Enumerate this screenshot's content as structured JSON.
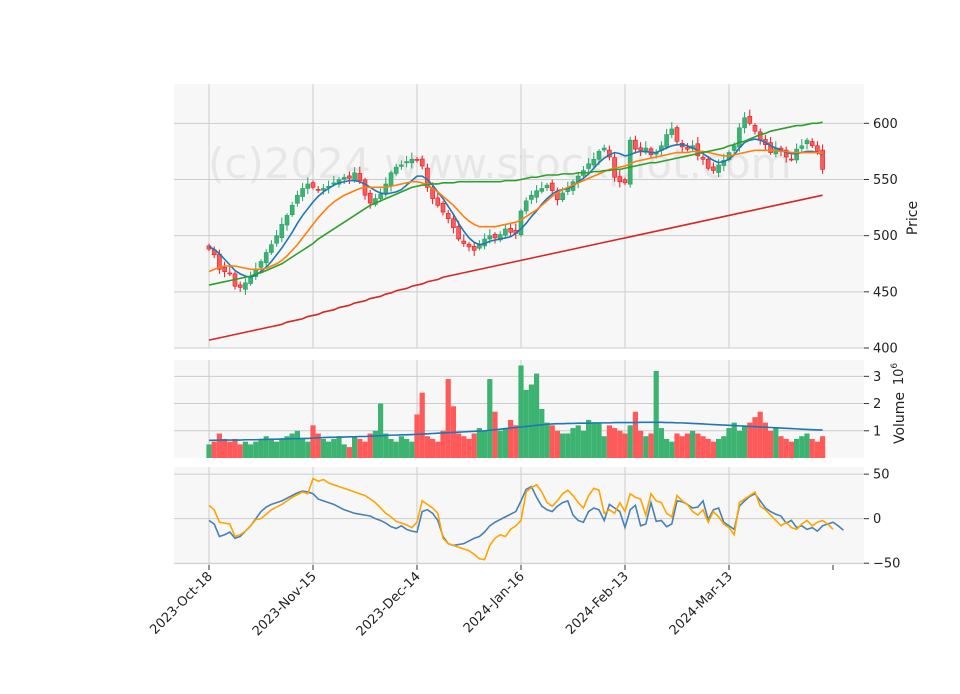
{
  "watermark": "(c)2024 www.stockplot.com",
  "chart_data": [
    {
      "panel": "price",
      "type": "candlestick",
      "ylabel": "Price",
      "ylim": [
        400,
        635
      ],
      "yticks": [
        400,
        450,
        500,
        550,
        600
      ],
      "grid": true,
      "xticks": [
        {
          "index": 0,
          "label": "2023-Oct-18"
        },
        {
          "index": 20,
          "label": "2023-Nov-15"
        },
        {
          "index": 40,
          "label": "2023-Dec-14"
        },
        {
          "index": 60,
          "label": "2024-Jan-16"
        },
        {
          "index": 80,
          "label": "2024-Feb-13"
        },
        {
          "index": 100,
          "label": "2024-Mar-13"
        }
      ],
      "colors": {
        "up": "#26a269",
        "down": "#e01b24",
        "up_fill": "#3cb371",
        "down_fill": "#ff5a5a"
      },
      "close": [
        488,
        483,
        470,
        468,
        466,
        455,
        454,
        458,
        463,
        470,
        477,
        485,
        492,
        500,
        510,
        518,
        527,
        536,
        542,
        546,
        543,
        541,
        542,
        544,
        547,
        550,
        552,
        551,
        556,
        549,
        536,
        529,
        533,
        537,
        546,
        556,
        561,
        563,
        566,
        568,
        567,
        562,
        543,
        533,
        527,
        521,
        515,
        507,
        497,
        493,
        490,
        487,
        492,
        497,
        500,
        498,
        501,
        506,
        503,
        502,
        522,
        531,
        536,
        540,
        542,
        545,
        540,
        532,
        538,
        542,
        548,
        553,
        558,
        564,
        568,
        575,
        578,
        570,
        552,
        548,
        547,
        585,
        577,
        576,
        578,
        572,
        574,
        580,
        590,
        595,
        584,
        579,
        577,
        580,
        571,
        568,
        560,
        558,
        563,
        567,
        574,
        580,
        596,
        605,
        600,
        593,
        585,
        581,
        574,
        578,
        575,
        570,
        568,
        577,
        580,
        585,
        580,
        575,
        559
      ]
    },
    {
      "panel": "price_moving_averages",
      "type": "line",
      "series": [
        {
          "color": "#1f77b4",
          "values": [
            490,
            488,
            484,
            479,
            474,
            469,
            466,
            464,
            463,
            465,
            468,
            472,
            477,
            483,
            489,
            496,
            503,
            511,
            518,
            524,
            530,
            535,
            539,
            542,
            545,
            547,
            548,
            549,
            549,
            548,
            546,
            543,
            540,
            538,
            537,
            538,
            539,
            541,
            545,
            549,
            553,
            553,
            550,
            545,
            539,
            533,
            526,
            519,
            511,
            504,
            498,
            494,
            492,
            493,
            495,
            496,
            497,
            498,
            499,
            502,
            506,
            511,
            517,
            522,
            528,
            533,
            537,
            540,
            541,
            542,
            544,
            548,
            551,
            555,
            560,
            565,
            569,
            572,
            574,
            573,
            571,
            572,
            574,
            575,
            575,
            574,
            574,
            576,
            578,
            580,
            581,
            581,
            580,
            578,
            576,
            573,
            570,
            567,
            565,
            566,
            568,
            572,
            578,
            583,
            585,
            586,
            585,
            583,
            580,
            578,
            576,
            574,
            573,
            573,
            574,
            575,
            575,
            574,
            572
          ]
        },
        {
          "color": "#ff7f0e",
          "values": [
            468,
            470,
            472,
            473,
            473,
            473,
            472,
            471,
            470,
            470,
            470,
            471,
            473,
            475,
            478,
            482,
            487,
            492,
            498,
            504,
            510,
            516,
            521,
            526,
            530,
            533,
            536,
            538,
            540,
            542,
            543,
            543,
            543,
            543,
            543,
            544,
            545,
            546,
            547,
            548,
            548,
            547,
            545,
            542,
            539,
            535,
            531,
            527,
            522,
            517,
            513,
            510,
            508,
            508,
            508,
            508,
            509,
            510,
            511,
            512,
            514,
            517,
            520,
            523,
            527,
            531,
            535,
            538,
            541,
            543,
            545,
            547,
            549,
            551,
            553,
            555,
            557,
            559,
            560,
            561,
            562,
            564,
            566,
            567,
            568,
            569,
            570,
            571,
            572,
            573,
            574,
            574,
            574,
            575,
            575,
            575,
            574,
            573,
            572,
            571,
            571,
            572,
            573,
            574,
            575,
            576,
            576,
            576,
            576,
            576,
            575,
            575,
            574,
            574,
            574,
            574,
            574,
            574,
            573
          ]
        },
        {
          "color": "#2ca02c",
          "values": [
            456,
            457,
            458,
            459,
            460,
            461,
            462,
            463,
            464,
            466,
            467,
            469,
            471,
            473,
            475,
            478,
            481,
            484,
            487,
            490,
            493,
            497,
            500,
            503,
            506,
            509,
            512,
            515,
            518,
            521,
            524,
            527,
            529,
            531,
            533,
            535,
            537,
            539,
            541,
            543,
            544,
            545,
            545,
            546,
            546,
            547,
            547,
            547,
            548,
            548,
            548,
            548,
            548,
            548,
            548,
            548,
            548,
            549,
            549,
            549,
            550,
            551,
            552,
            552,
            553,
            554,
            554,
            554,
            555,
            555,
            555,
            556,
            556,
            556,
            557,
            557,
            558,
            558,
            559,
            559,
            560,
            561,
            562,
            563,
            564,
            565,
            565,
            566,
            567,
            568,
            569,
            570,
            571,
            572,
            573,
            574,
            575,
            576,
            577,
            578,
            580,
            581,
            583,
            584,
            586,
            588,
            590,
            591,
            593,
            594,
            595,
            596,
            597,
            598,
            598,
            599,
            600,
            600,
            601
          ]
        },
        {
          "color": "#d62728",
          "values": [
            407,
            408,
            409,
            410,
            411,
            412,
            413,
            414,
            415,
            416,
            417,
            418,
            419,
            420,
            421,
            423,
            424,
            425,
            426,
            428,
            429,
            430,
            432,
            433,
            434,
            436,
            437,
            438,
            440,
            441,
            442,
            444,
            445,
            446,
            448,
            449,
            451,
            452,
            453,
            455,
            456,
            457,
            459,
            460,
            461,
            463,
            464,
            465,
            466,
            467,
            468,
            469,
            470,
            471,
            472,
            473,
            474,
            475,
            476,
            477,
            478,
            479,
            480,
            481,
            482,
            483,
            484,
            485,
            486,
            487,
            488,
            489,
            490,
            491,
            492,
            493,
            494,
            495,
            496,
            497,
            498,
            499,
            500,
            501,
            502,
            503,
            504,
            505,
            506,
            507,
            508,
            509,
            510,
            511,
            512,
            513,
            514,
            515,
            516,
            517,
            518,
            519,
            520,
            521,
            522,
            523,
            524,
            525,
            526,
            527,
            528,
            529,
            530,
            531,
            532,
            533,
            534,
            535,
            536
          ]
        }
      ]
    },
    {
      "panel": "volume",
      "type": "bar",
      "ylabel": "Volume",
      "yunit": "10^6",
      "ylim": [
        0,
        3.6
      ],
      "yticks": [
        1,
        2,
        3
      ],
      "values": [
        0.5,
        0.6,
        0.9,
        0.7,
        0.6,
        0.7,
        0.5,
        0.6,
        0.5,
        0.6,
        0.7,
        0.8,
        0.7,
        0.6,
        0.7,
        0.8,
        0.9,
        1.0,
        0.7,
        0.6,
        1.2,
        0.9,
        0.7,
        0.6,
        0.7,
        0.8,
        0.5,
        0.4,
        0.8,
        0.7,
        0.6,
        0.9,
        1.0,
        2.0,
        0.9,
        0.7,
        0.6,
        0.8,
        0.7,
        0.6,
        1.6,
        2.4,
        0.8,
        0.7,
        0.6,
        1.0,
        2.9,
        1.9,
        0.9,
        0.8,
        0.7,
        0.9,
        1.1,
        1.0,
        2.9,
        1.7,
        1.0,
        1.1,
        1.4,
        1.2,
        3.4,
        2.5,
        2.7,
        3.1,
        1.8,
        1.3,
        1.2,
        1.0,
        0.9,
        0.9,
        1.1,
        1.2,
        1.0,
        1.4,
        1.3,
        1.3,
        0.8,
        1.2,
        1.1,
        1.0,
        0.9,
        1.2,
        1.7,
        1.0,
        0.8,
        0.9,
        3.2,
        1.1,
        0.7,
        0.6,
        0.9,
        0.8,
        0.9,
        1.0,
        0.9,
        0.8,
        0.7,
        0.6,
        0.7,
        0.8,
        1.1,
        1.3,
        1.0,
        1.2,
        1.3,
        1.5,
        1.7,
        1.3,
        1.0,
        1.1,
        0.8,
        0.7,
        0.6,
        0.7,
        0.8,
        0.9,
        0.7,
        0.6,
        0.8
      ],
      "ma": {
        "color": "#1f77b4",
        "values": [
          0.65,
          0.65,
          0.66,
          0.66,
          0.66,
          0.66,
          0.66,
          0.67,
          0.67,
          0.67,
          0.68,
          0.68,
          0.69,
          0.69,
          0.7,
          0.7,
          0.71,
          0.71,
          0.72,
          0.72,
          0.73,
          0.74,
          0.75,
          0.76,
          0.76,
          0.77,
          0.77,
          0.78,
          0.78,
          0.79,
          0.79,
          0.8,
          0.81,
          0.82,
          0.83,
          0.84,
          0.84,
          0.85,
          0.85,
          0.86,
          0.87,
          0.88,
          0.89,
          0.9,
          0.91,
          0.92,
          0.93,
          0.94,
          0.95,
          0.96,
          0.97,
          0.98,
          0.99,
          1.0,
          1.02,
          1.04,
          1.06,
          1.08,
          1.1,
          1.12,
          1.14,
          1.16,
          1.18,
          1.2,
          1.22,
          1.24,
          1.25,
          1.26,
          1.26,
          1.27,
          1.27,
          1.28,
          1.28,
          1.28,
          1.29,
          1.29,
          1.29,
          1.29,
          1.3,
          1.3,
          1.3,
          1.3,
          1.3,
          1.31,
          1.31,
          1.31,
          1.31,
          1.31,
          1.3,
          1.3,
          1.29,
          1.29,
          1.28,
          1.27,
          1.26,
          1.25,
          1.24,
          1.23,
          1.22,
          1.21,
          1.2,
          1.19,
          1.18,
          1.17,
          1.16,
          1.15,
          1.14,
          1.13,
          1.12,
          1.11,
          1.1,
          1.09,
          1.08,
          1.07,
          1.06,
          1.05,
          1.04,
          1.03,
          1.03
        ]
      },
      "colors": {
        "up": "#3cb371",
        "down": "#ff5a5a"
      }
    },
    {
      "panel": "oscillator",
      "type": "line",
      "ylim": [
        -52,
        58
      ],
      "yticks": [
        -50,
        0,
        50
      ],
      "series": [
        {
          "color": "#4682b4",
          "values": [
            -2,
            -6,
            -20,
            -18,
            -15,
            -22,
            -20,
            -14,
            -8,
            0,
            8,
            13,
            16,
            18,
            20,
            23,
            26,
            29,
            31,
            30,
            28,
            22,
            20,
            18,
            16,
            13,
            10,
            8,
            6,
            5,
            4,
            3,
            0,
            -2,
            -5,
            -9,
            -11,
            -8,
            -12,
            -14,
            -15,
            8,
            10,
            6,
            -2,
            -20,
            -28,
            -30,
            -29,
            -28,
            -25,
            -22,
            -20,
            -15,
            -8,
            -4,
            -1,
            2,
            5,
            8,
            20,
            33,
            36,
            24,
            14,
            10,
            8,
            14,
            18,
            20,
            4,
            -2,
            -4,
            8,
            12,
            10,
            -2,
            16,
            12,
            8,
            -10,
            10,
            15,
            -8,
            -6,
            18,
            -3,
            -2,
            -9,
            -6,
            20,
            19,
            16,
            12,
            13,
            20,
            -1,
            10,
            12,
            -4,
            -8,
            -12,
            14,
            20,
            25,
            28,
            20,
            12,
            8,
            5,
            3,
            -5,
            -2,
            -10,
            -8,
            -12,
            -10,
            -14,
            -8,
            -6,
            -4,
            -8,
            -13
          ]
        },
        {
          "color": "#ffa500",
          "values": [
            15,
            10,
            -4,
            -5,
            -6,
            -20,
            -18,
            -14,
            -8,
            -1,
            0,
            5,
            10,
            13,
            16,
            20,
            24,
            27,
            30,
            28,
            45,
            42,
            44,
            40,
            38,
            36,
            34,
            32,
            30,
            28,
            26,
            22,
            18,
            12,
            6,
            2,
            -3,
            -5,
            -7,
            -10,
            -4,
            20,
            16,
            12,
            6,
            -22,
            -28,
            -30,
            -32,
            -34,
            -36,
            -40,
            -45,
            -46,
            -30,
            -22,
            -18,
            -20,
            -12,
            -8,
            -2,
            30,
            35,
            38,
            30,
            18,
            14,
            20,
            28,
            32,
            26,
            18,
            12,
            26,
            34,
            32,
            6,
            10,
            6,
            18,
            8,
            28,
            24,
            22,
            4,
            28,
            20,
            18,
            6,
            2,
            26,
            20,
            16,
            8,
            4,
            10,
            -4,
            8,
            2,
            -6,
            -10,
            -18,
            18,
            22,
            26,
            30,
            14,
            10,
            4,
            -2,
            -8,
            -4,
            -10,
            -12,
            -6,
            -2,
            -8,
            -4,
            -2,
            -6,
            -12
          ]
        }
      ]
    }
  ]
}
